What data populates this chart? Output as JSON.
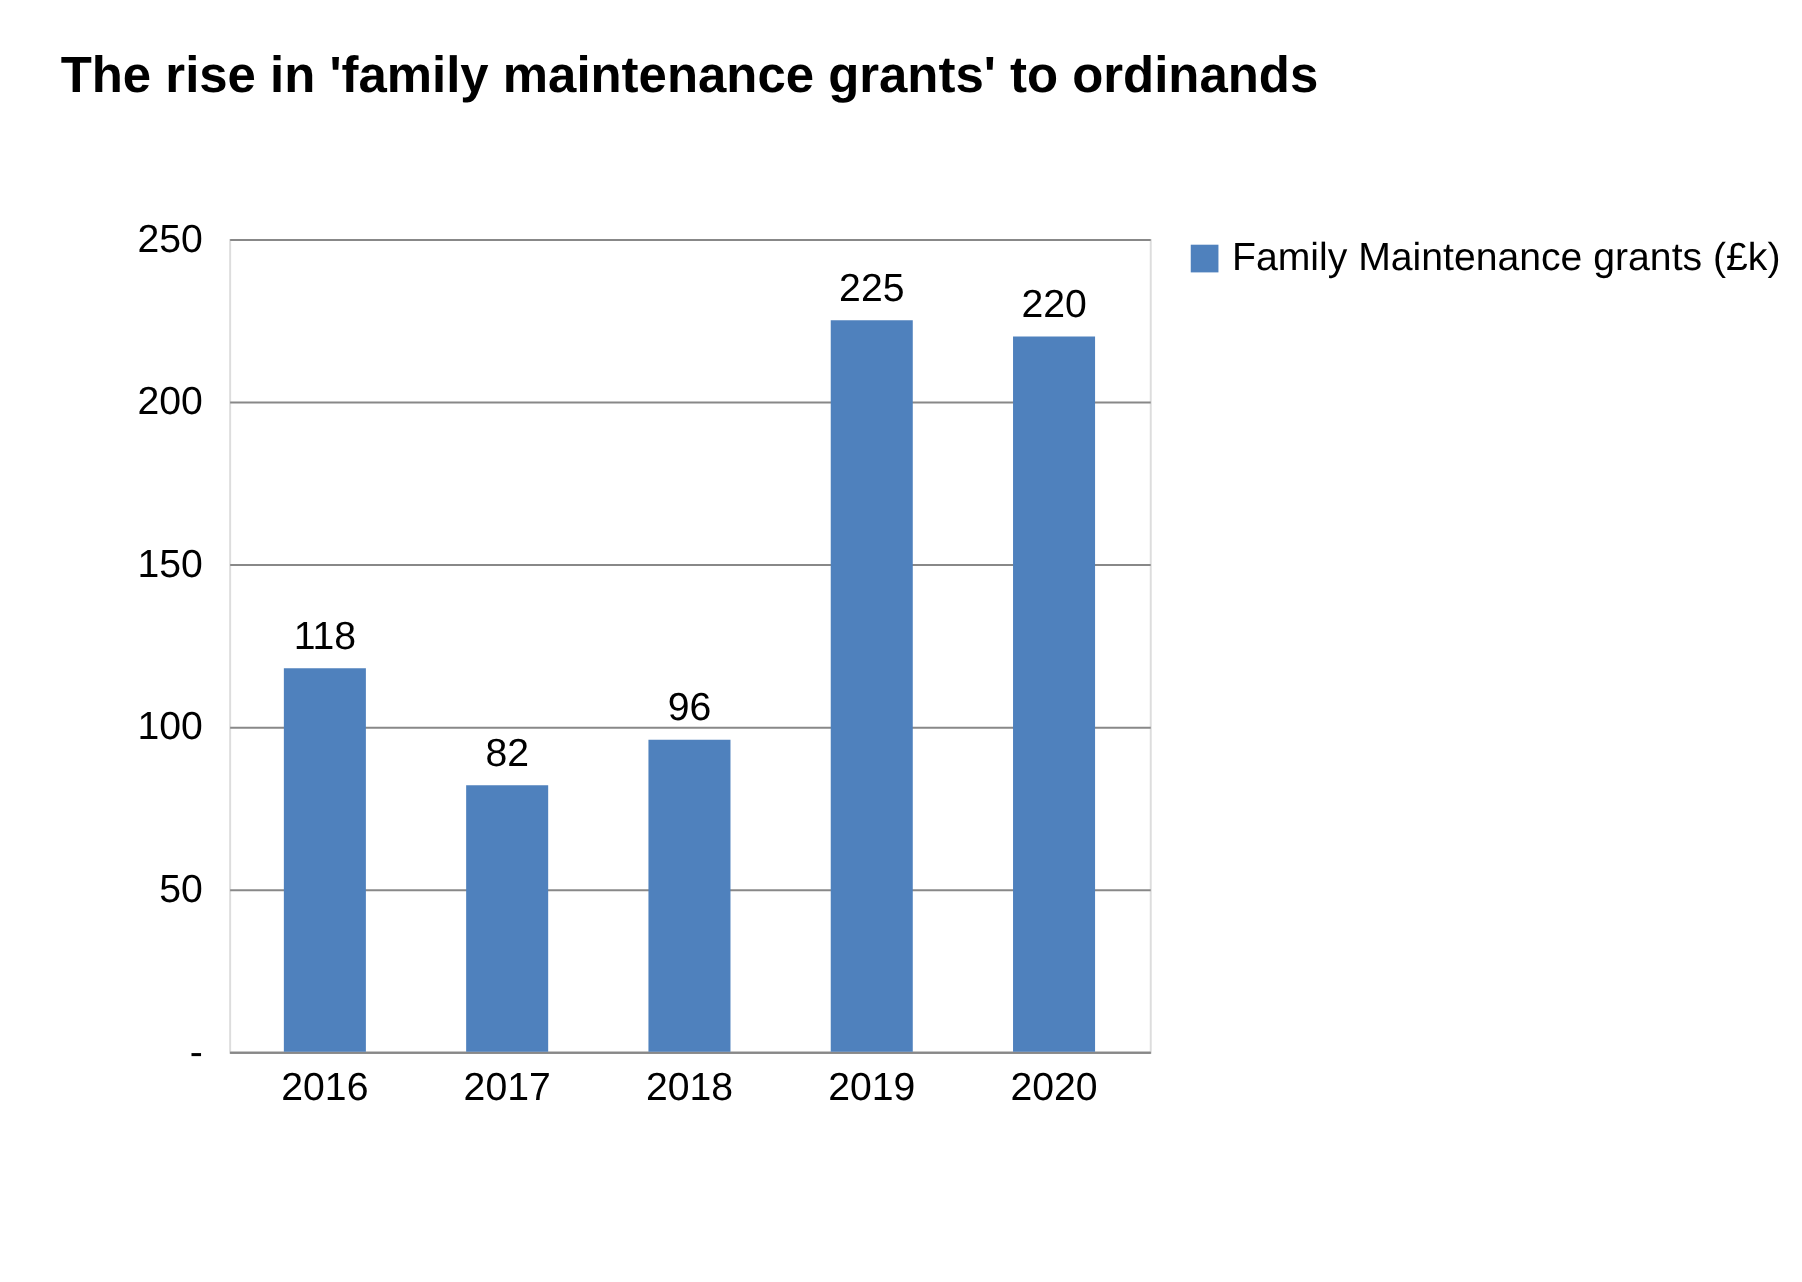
{
  "chart_data": {
    "type": "bar",
    "title": "The rise in 'family maintenance grants' to ordinands",
    "categories": [
      "2016",
      "2017",
      "2018",
      "2019",
      "2020"
    ],
    "series": [
      {
        "name": "Family Maintenance grants (£k)",
        "color": "#4f81bd",
        "values": [
          118,
          82,
          96,
          225,
          220
        ]
      }
    ],
    "ylim": [
      0,
      250
    ],
    "yticks": [
      {
        "value": 0,
        "label": "-"
      },
      50,
      100,
      150,
      200,
      250
    ],
    "grid": "y",
    "legend": "right",
    "data_labels": true
  }
}
